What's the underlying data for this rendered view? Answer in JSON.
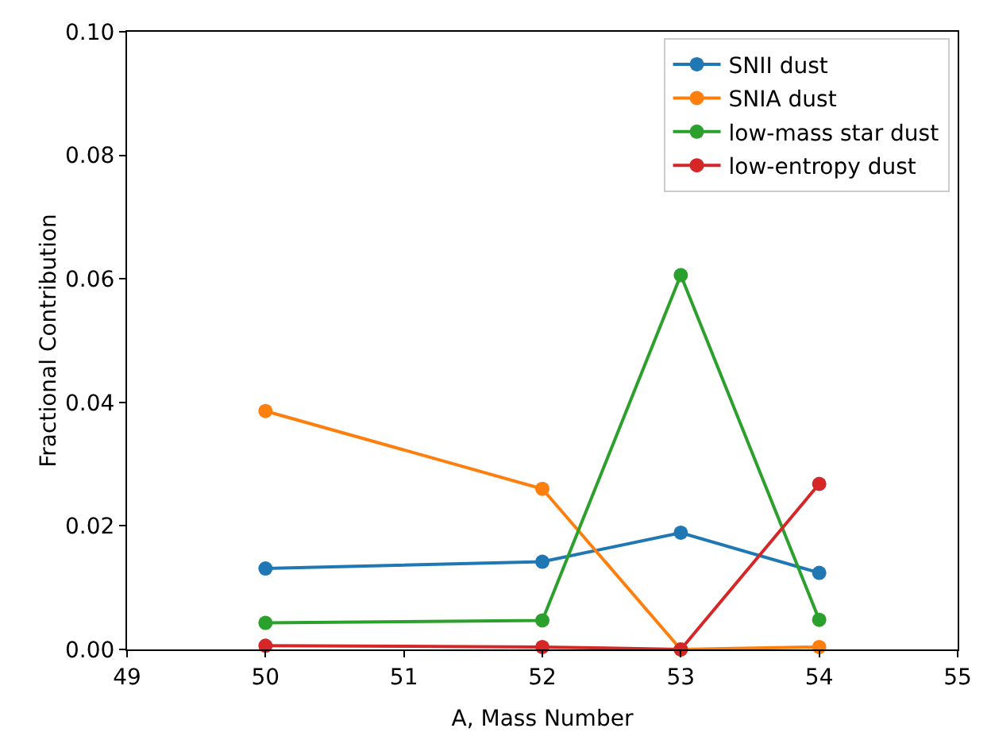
{
  "chart_data": {
    "type": "line",
    "xlabel": "A, Mass Number",
    "ylabel": "Fractional Contribution",
    "x": [
      50,
      52,
      53,
      54
    ],
    "series": [
      {
        "name": "SNII dust",
        "color": "#1f77b4",
        "values": [
          0.0131,
          0.0142,
          0.0189,
          0.0124
        ]
      },
      {
        "name": "SNIA dust",
        "color": "#ff7f0e",
        "values": [
          0.0386,
          0.026,
          0.0,
          0.0004
        ]
      },
      {
        "name": "low-mass star dust",
        "color": "#2ca02c",
        "values": [
          0.0043,
          0.0047,
          0.0606,
          0.0048
        ]
      },
      {
        "name": "low-entropy dust",
        "color": "#d62728",
        "values": [
          0.0006,
          0.0004,
          0.0,
          0.0268
        ]
      }
    ],
    "xlim": [
      49,
      55
    ],
    "xticks": [
      49,
      50,
      51,
      52,
      53,
      54,
      55
    ],
    "ylim": [
      0,
      0.1
    ],
    "yticks": [
      {
        "value": 0,
        "label": "0.00"
      },
      {
        "value": 0.02,
        "label": "0.02"
      },
      {
        "value": 0.04,
        "label": "0.04"
      },
      {
        "value": 0.06,
        "label": "0.06"
      },
      {
        "value": 0.08,
        "label": "0.08"
      },
      {
        "value": 0.1,
        "label": "0.10"
      }
    ],
    "grid": false,
    "legend": "top right",
    "marker": "circle",
    "line_style": "solid"
  }
}
